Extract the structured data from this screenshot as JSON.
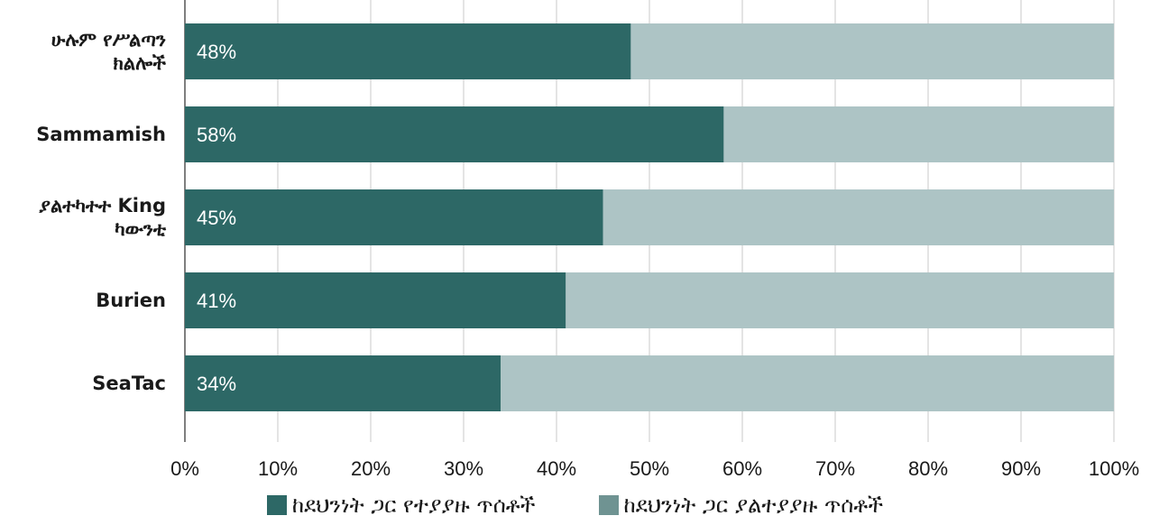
{
  "chart_data": {
    "type": "bar",
    "stacked": true,
    "orientation": "horizontal",
    "percent_stacked": true,
    "categories": [
      [
        "ሁሉም የሥልጣን",
        "ክልሎች"
      ],
      [
        "Sammamish"
      ],
      [
        "ያልተካተተ King",
        "ካውንቲ"
      ],
      [
        "Burien"
      ],
      [
        "SeaTac"
      ]
    ],
    "series": [
      {
        "name": "ከደህንነት ጋር የተያያዙ ጥሰቶች",
        "values": [
          48,
          58,
          45,
          41,
          34
        ],
        "color": "#2d6866"
      },
      {
        "name": "ከደህንነት ጋር ያልተያያዙ ጥሰቶች",
        "values": [
          52,
          42,
          55,
          59,
          66
        ],
        "color": "#adc4c5"
      }
    ],
    "data_labels": [
      "48%",
      "58%",
      "45%",
      "41%",
      "34%"
    ],
    "x_ticks": [
      "0%",
      "10%",
      "20%",
      "30%",
      "40%",
      "50%",
      "60%",
      "70%",
      "80%",
      "90%",
      "100%"
    ],
    "xlim": [
      0,
      100
    ],
    "grid": true,
    "legend_position": "bottom",
    "gridline_color": "#c8c8c8",
    "axis_color": "#555555",
    "data_label_color": "#ffffff"
  }
}
